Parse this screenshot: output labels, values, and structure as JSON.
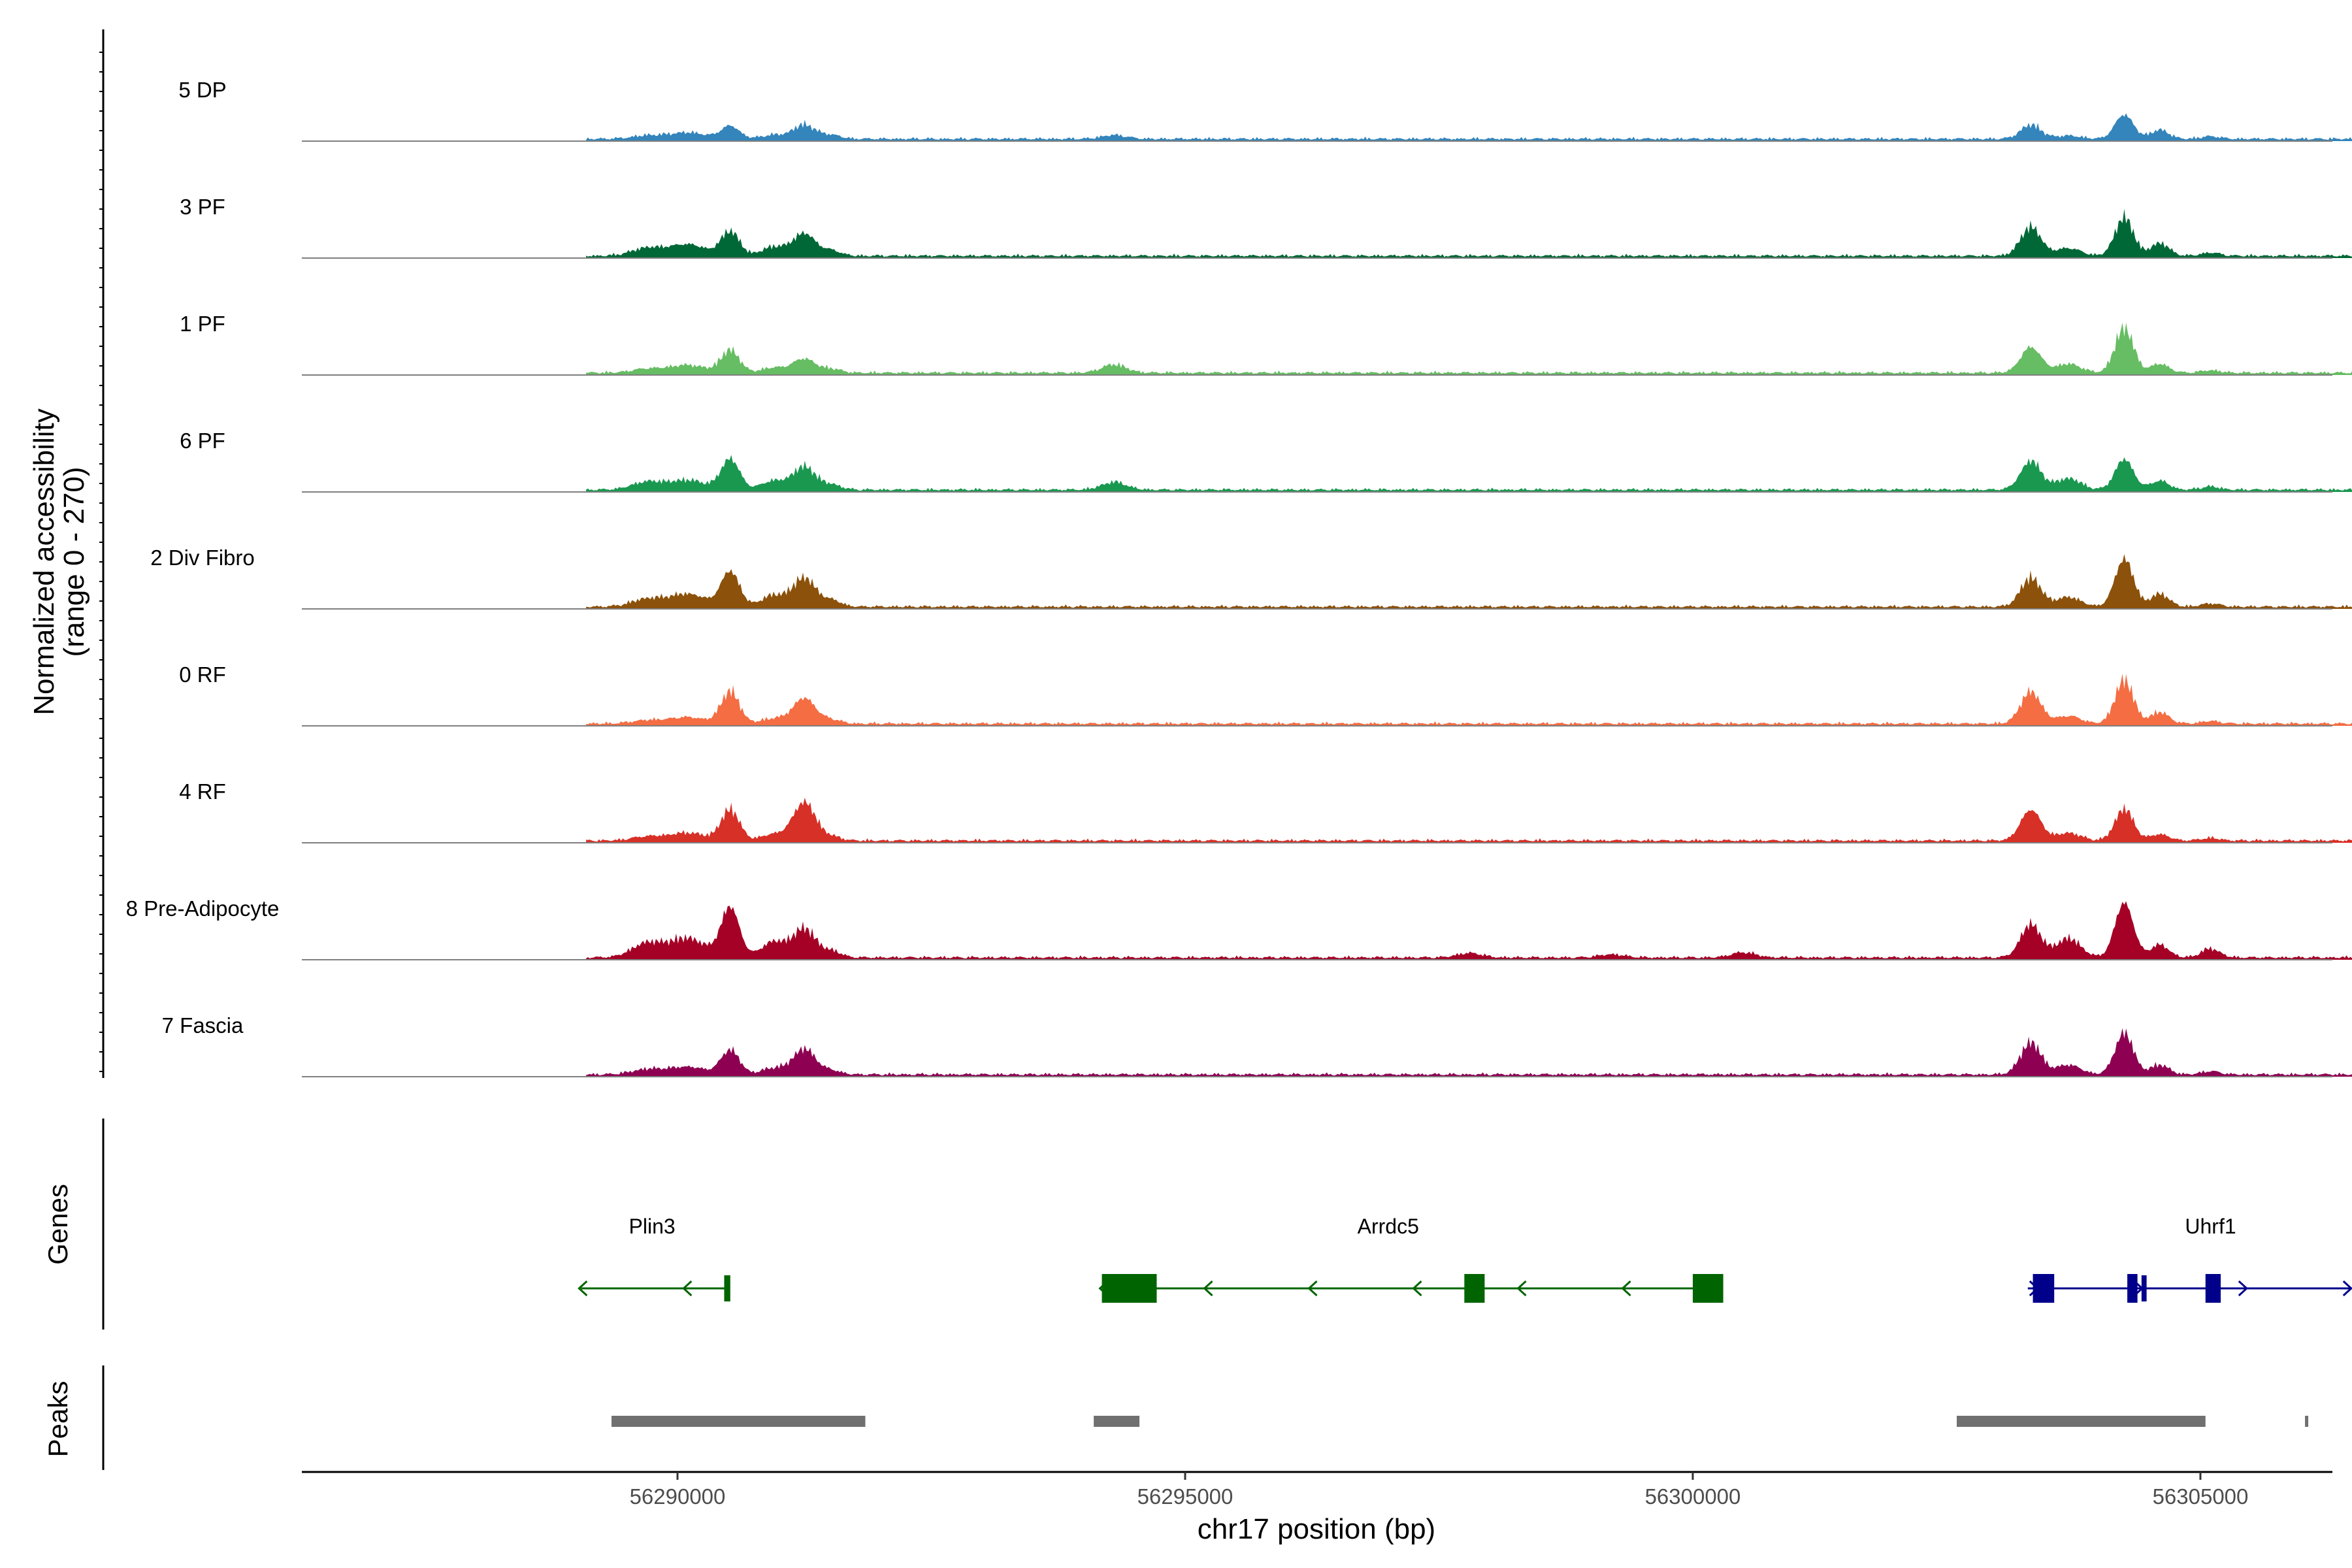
{
  "chart_data": {
    "type": "area",
    "title": "",
    "xlabel": "chr17 position (bp)",
    "ylabel": "Normalized accessibility",
    "ylabel_sub": "(range 0 - 270)",
    "y_range": [
      0,
      270
    ],
    "xlim": [
      56286300,
      56306300
    ],
    "x_ticks": [
      56290000,
      56295000,
      56300000,
      56305000
    ],
    "x_tick_labels": [
      "56290000",
      "56295000",
      "56300000",
      "56305000"
    ],
    "signal_span": [
      56289100,
      56307200
    ],
    "background_level": 6,
    "profile_peaks": [
      {
        "center": 56289700,
        "width": 150
      },
      {
        "center": 56290100,
        "width": 180
      },
      {
        "center": 56290520,
        "width": 90
      },
      {
        "center": 56290950,
        "width": 120
      },
      {
        "center": 56291250,
        "width": 110
      },
      {
        "center": 56291520,
        "width": 90
      },
      {
        "center": 56303330,
        "width": 100
      },
      {
        "center": 56303700,
        "width": 120
      },
      {
        "center": 56304250,
        "width": 90
      },
      {
        "center": 56304600,
        "width": 90
      },
      {
        "center": 56305100,
        "width": 90
      }
    ],
    "series": [
      {
        "name": "5 DP",
        "color": "#3385BB",
        "peaks": [
          5,
          10,
          20,
          6,
          22,
          6,
          22,
          5,
          38,
          14,
          4
        ],
        "minor": [
          {
            "center": 56294300,
            "height": 6
          }
        ]
      },
      {
        "name": "3 PF",
        "color": "#006837",
        "peaks": [
          12,
          18,
          38,
          14,
          35,
          8,
          45,
          12,
          60,
          20,
          5
        ],
        "minor": []
      },
      {
        "name": "1 PF",
        "color": "#66BD63",
        "peaks": [
          6,
          12,
          35,
          8,
          22,
          6,
          40,
          14,
          70,
          14,
          4
        ],
        "minor": [
          {
            "center": 56294300,
            "height": 13
          }
        ]
      },
      {
        "name": "6 PF",
        "color": "#1A9850",
        "peaks": [
          12,
          15,
          48,
          14,
          36,
          8,
          45,
          18,
          48,
          14,
          5
        ],
        "minor": [
          {
            "center": 56294300,
            "height": 12
          }
        ]
      },
      {
        "name": "2 Div Fibro",
        "color": "#8C510A",
        "peaks": [
          12,
          20,
          55,
          18,
          45,
          10,
          45,
          15,
          75,
          20,
          5
        ],
        "minor": []
      },
      {
        "name": "0 RF",
        "color": "#F46D43",
        "peaks": [
          5,
          10,
          50,
          8,
          40,
          6,
          50,
          12,
          68,
          18,
          4
        ],
        "minor": []
      },
      {
        "name": "4 RF",
        "color": "#D73027",
        "peaks": [
          6,
          12,
          48,
          10,
          60,
          6,
          48,
          12,
          50,
          10,
          4
        ],
        "minor": []
      },
      {
        "name": "8 Pre-Adipocyte",
        "color": "#A50026",
        "peaks": [
          22,
          30,
          78,
          25,
          45,
          10,
          52,
          30,
          86,
          20,
          14
        ],
        "minor": [
          {
            "center": 56297800,
            "height": 7
          },
          {
            "center": 56299200,
            "height": 5
          },
          {
            "center": 56300500,
            "height": 8
          }
        ]
      },
      {
        "name": "7 Fascia",
        "color": "#8E0152",
        "peaks": [
          8,
          12,
          38,
          10,
          40,
          6,
          50,
          15,
          65,
          15,
          5
        ],
        "minor": []
      }
    ],
    "genes": {
      "title": "Genes",
      "items": [
        {
          "name": "Plin3",
          "strand": "-",
          "start": 56289050,
          "end": 56290500,
          "label_x": 56289750,
          "color": "#006400",
          "exons": [
            [
              56290460,
              56290520
            ]
          ]
        },
        {
          "name": "Arrdc5",
          "strand": "-",
          "start": 56294180,
          "end": 56300280,
          "label_x": 56297000,
          "color": "#006400",
          "exons": [
            [
              56294180,
              56294720
            ],
            [
              56297750,
              56297950
            ],
            [
              56300000,
              56300300
            ]
          ]
        },
        {
          "name": "Uhrf1",
          "strand": "+",
          "start": 56303300,
          "end": 56307200,
          "label_x": 56305100,
          "color": "#00008B",
          "exons": [
            [
              56303350,
              56303560
            ],
            [
              56304280,
              56304380
            ],
            [
              56304420,
              56304470
            ],
            [
              56305050,
              56305200
            ]
          ]
        }
      ]
    },
    "peaks_track": {
      "title": "Peaks",
      "color": "#707070",
      "intervals": [
        [
          56289350,
          56291850
        ],
        [
          56294100,
          56294550
        ],
        [
          56302600,
          56305050
        ],
        [
          56306030,
          56306060
        ]
      ]
    }
  }
}
